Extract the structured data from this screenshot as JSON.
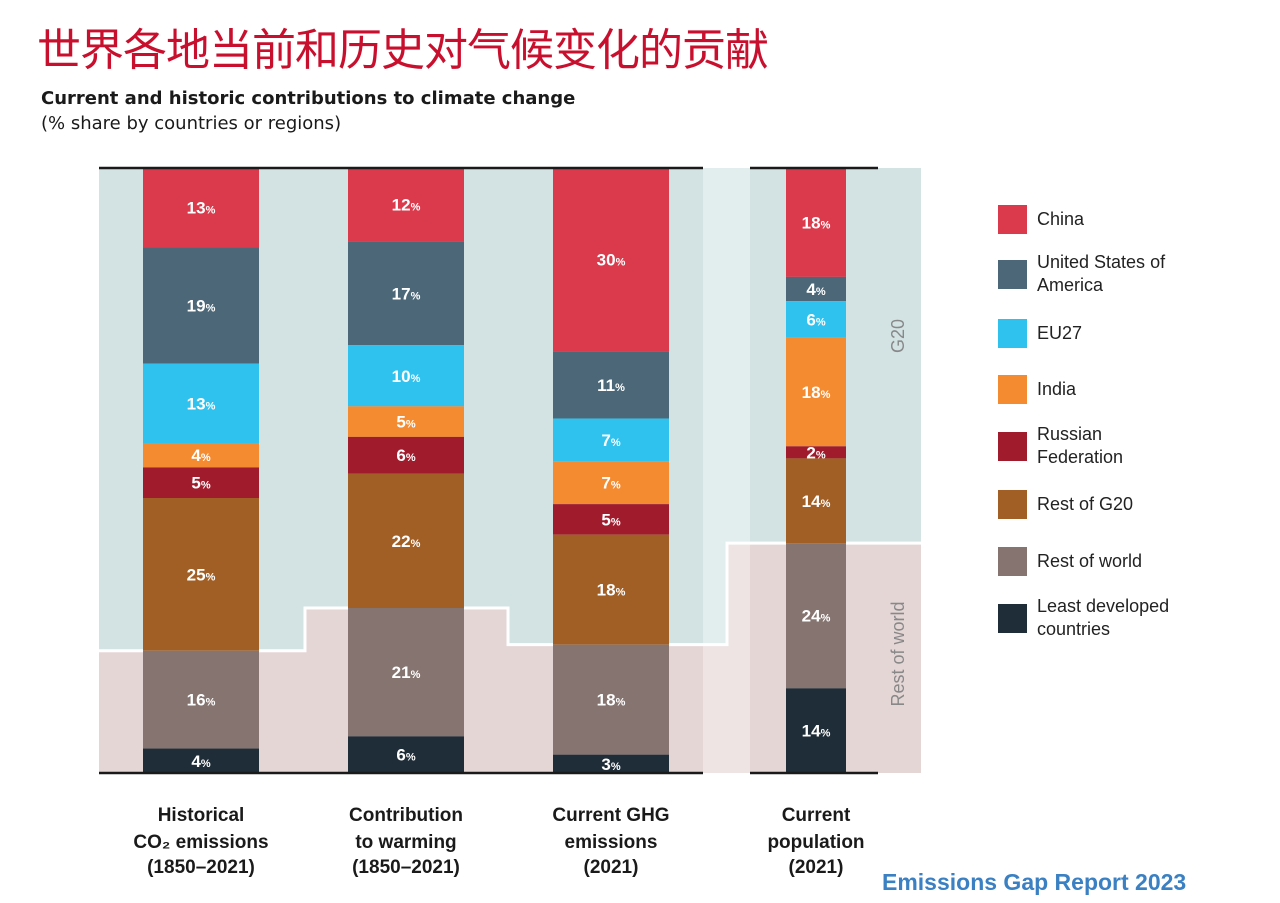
{
  "page_title": "世界各地当前和历史对气候变化的贡献",
  "source": "Emissions Gap Report 2023",
  "chart_data": {
    "type": "bar",
    "stacked": true,
    "title": "Current and historic contributions to climate change",
    "subtitle": "(% share by countries or regions)",
    "unit": "%",
    "categories": [
      {
        "lines": [
          "Historical",
          "CO₂ emissions",
          "(1850–2021)"
        ]
      },
      {
        "lines": [
          "Contribution",
          "to warming",
          "(1850–2021)"
        ]
      },
      {
        "lines": [
          "Current GHG",
          "emissions",
          "(2021)"
        ]
      },
      {
        "lines": [
          "Current",
          "population",
          "(2021)"
        ]
      }
    ],
    "series": [
      {
        "name": "China",
        "color": "#da3a4b",
        "values": [
          13,
          12,
          30,
          18
        ]
      },
      {
        "name": "United States of America",
        "color": "#4b6778",
        "values": [
          19,
          17,
          11,
          4
        ]
      },
      {
        "name": "EU27",
        "color": "#2fc2ee",
        "values": [
          13,
          10,
          7,
          6
        ]
      },
      {
        "name": "India",
        "color": "#f58b30",
        "values": [
          4,
          5,
          7,
          18
        ]
      },
      {
        "name": "Russian Federation",
        "color": "#a01c2d",
        "values": [
          5,
          6,
          5,
          2
        ]
      },
      {
        "name": "Rest of G20",
        "color": "#a15f26",
        "values": [
          25,
          22,
          18,
          14
        ]
      },
      {
        "name": "Rest of world",
        "color": "#857470",
        "values": [
          16,
          21,
          18,
          24
        ]
      },
      {
        "name": "Least developed countries",
        "color": "#1f2d38",
        "values": [
          4,
          6,
          3,
          14
        ]
      }
    ],
    "legend": {
      "position": "right",
      "items": [
        {
          "label": "China",
          "color": "#da3a4b"
        },
        {
          "label": "United States of America",
          "color": "#4b6778"
        },
        {
          "label": "EU27",
          "color": "#2fc2ee"
        },
        {
          "label": "India",
          "color": "#f58b30"
        },
        {
          "label": "Russian Federation",
          "color": "#a01c2d"
        },
        {
          "label": "Rest of G20",
          "color": "#a15f26"
        },
        {
          "label": "Rest of world",
          "color": "#857470"
        },
        {
          "label": "Least developed countries",
          "color": "#1f2d38"
        }
      ]
    },
    "groups": [
      {
        "label": "G20",
        "color": "#d3e3e3",
        "series": [
          "China",
          "United States of America",
          "EU27",
          "India",
          "Russian Federation",
          "Rest of G20"
        ]
      },
      {
        "label": "Rest of world",
        "color": "#e5d6d6",
        "series": [
          "Rest of world",
          "Least developed countries"
        ]
      }
    ]
  }
}
